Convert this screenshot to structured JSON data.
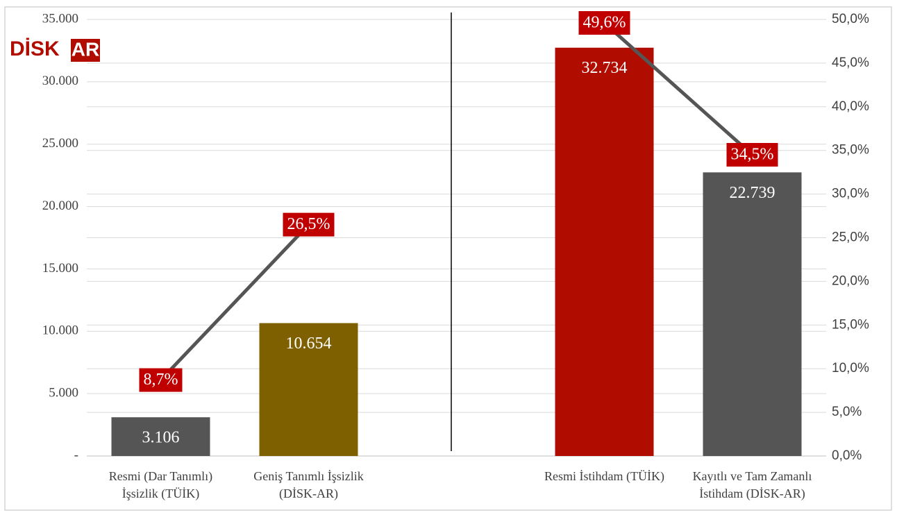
{
  "chart_data": {
    "type": "bar",
    "logo": {
      "left": "DİSK",
      "right": "AR"
    },
    "categories": [
      "Resmi (Dar Tanımlı)\nİşsizlik (TÜİK)",
      "Geniş Tanımlı İşsizlik\n(DİSK-AR)",
      null,
      "Resmi İstihdam (TÜİK)",
      "Kayıtlı ve Tam Zamanlı\nİstihdam (DİSK-AR)"
    ],
    "series": [
      {
        "type": "bar",
        "colors": [
          "#555555",
          "#7f6000",
          null,
          "#b00c00",
          "#555555"
        ],
        "values": [
          3106,
          10654,
          null,
          32734,
          22739
        ],
        "value_labels": [
          "3.106",
          "10.654",
          null,
          "32.734",
          "22.739"
        ]
      },
      {
        "type": "line",
        "axis": "y2",
        "color": "#555555",
        "label_color": "#c00000",
        "values": [
          8.7,
          26.5,
          null,
          49.6,
          34.5
        ],
        "value_labels": [
          "8,7%",
          "26,5%",
          null,
          "49,6%",
          "34,5%"
        ]
      }
    ],
    "ylim": [
      0,
      35000
    ],
    "yticks": [
      {
        "value": 0,
        "label": "-"
      },
      {
        "value": 5000,
        "label": "5.000"
      },
      {
        "value": 10000,
        "label": "10.000"
      },
      {
        "value": 15000,
        "label": "15.000"
      },
      {
        "value": 20000,
        "label": "20.000"
      },
      {
        "value": 25000,
        "label": "25.000"
      },
      {
        "value": 30000,
        "label": "30.000"
      },
      {
        "value": 35000,
        "label": "35.000"
      }
    ],
    "y2lim": [
      0,
      50
    ],
    "y2ticks": [
      {
        "value": 0,
        "label": "0,0%"
      },
      {
        "value": 5,
        "label": "5,0%"
      },
      {
        "value": 10,
        "label": "10,0%"
      },
      {
        "value": 15,
        "label": "15,0%"
      },
      {
        "value": 20,
        "label": "20,0%"
      },
      {
        "value": 25,
        "label": "25,0%"
      },
      {
        "value": 30,
        "label": "30,0%"
      },
      {
        "value": 35,
        "label": "35,0%"
      },
      {
        "value": 40,
        "label": "40,0%"
      },
      {
        "value": 45,
        "label": "45,0%"
      },
      {
        "value": 50,
        "label": "50,0%"
      }
    ],
    "grid": true
  }
}
